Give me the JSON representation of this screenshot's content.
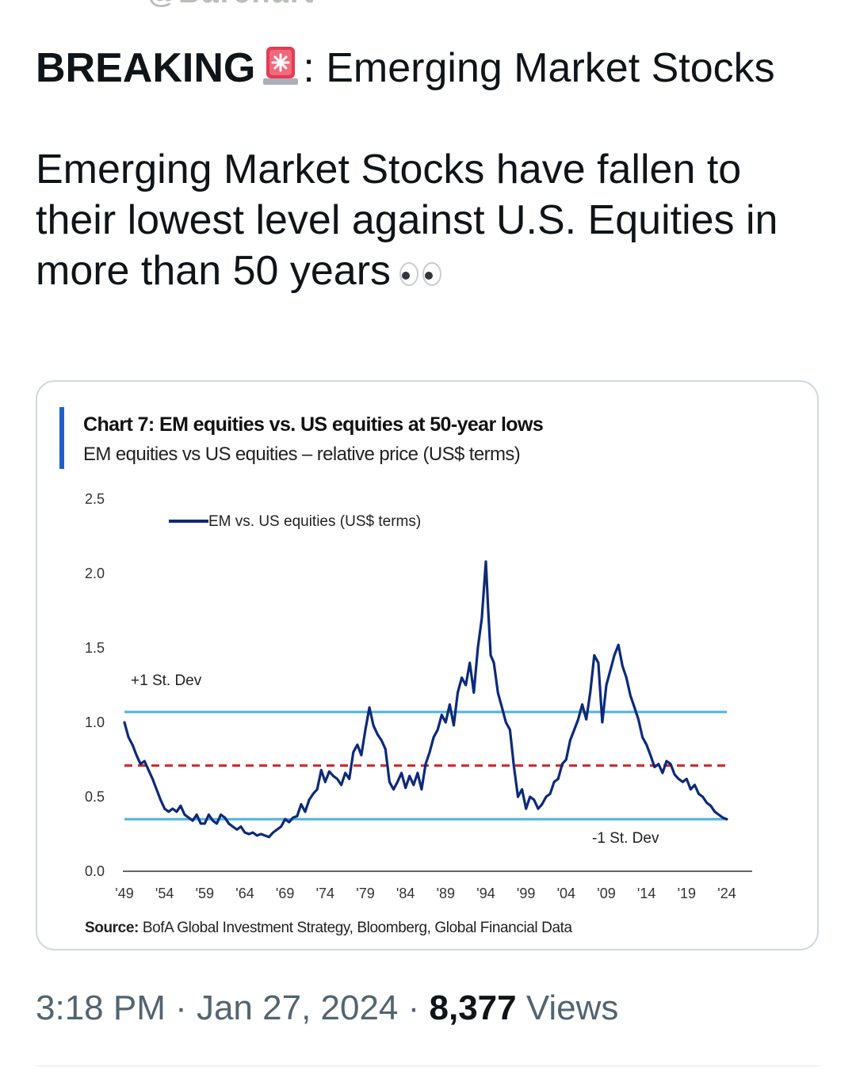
{
  "tweet": {
    "headline_bold": "BREAKING",
    "headline_rest": ": Emerging Market Stocks",
    "body": "Emerging Market Stocks have fallen to their lowest level against U.S. Equities in more than 50 years",
    "emoji_icons": [
      "rotating-light-icon",
      "eyes-icon"
    ],
    "timestamp": "3:18 PM · Jan 27, 2024 · ",
    "views_count": "8,377",
    "views_label": " Views"
  },
  "chart_card": {
    "title": "Chart 7: EM equities vs. US equities at 50-year lows",
    "subtitle": "EM equities vs US equities – relative price (US$ terms)",
    "source_label": "Source:",
    "source_text": " BofA Global Investment Strategy, Bloomberg, Global Financial Data",
    "accent_color": "#1f5fc9"
  },
  "chart_data": {
    "type": "line",
    "legend": "EM vs. US equities (US$ terms)",
    "annotations": [
      "+1 St. Dev",
      "-1 St. Dev"
    ],
    "ylim": [
      0.0,
      2.5
    ],
    "y_ticks": [
      "0.0",
      "0.5",
      "1.0",
      "1.5",
      "2.0",
      "2.5"
    ],
    "x_ticks": [
      "'49",
      "'54",
      "'59",
      "'64",
      "'69",
      "'74",
      "'79",
      "'84",
      "'89",
      "'94",
      "'99",
      "'04",
      "'09",
      "'14",
      "'19",
      "'24"
    ],
    "xlim": [
      1949,
      2025
    ],
    "reference_lines": [
      {
        "name": "+1 St. Dev",
        "value": 1.07,
        "style": "solid",
        "color": "#4fb3e0"
      },
      {
        "name": "mean",
        "value": 0.71,
        "style": "dashed",
        "color": "#d42a2a"
      },
      {
        "name": "-1 St. Dev",
        "value": 0.35,
        "style": "solid",
        "color": "#4fb3e0"
      }
    ],
    "line_color": "#0d2a7a",
    "series": [
      {
        "name": "EM vs. US equities (US$ terms)",
        "x": [
          1949.0,
          1949.5,
          1950.0,
          1950.5,
          1951.0,
          1951.5,
          1952.0,
          1952.5,
          1953.0,
          1953.5,
          1954.0,
          1954.5,
          1955.0,
          1955.5,
          1956.0,
          1956.5,
          1957.0,
          1957.5,
          1958.0,
          1958.5,
          1959.0,
          1959.5,
          1960.0,
          1960.5,
          1961.0,
          1961.5,
          1962.0,
          1962.5,
          1963.0,
          1963.5,
          1964.0,
          1964.5,
          1965.0,
          1965.5,
          1966.0,
          1966.5,
          1967.0,
          1967.5,
          1968.0,
          1968.5,
          1969.0,
          1969.5,
          1970.0,
          1970.5,
          1971.0,
          1971.5,
          1972.0,
          1972.5,
          1973.0,
          1973.5,
          1974.0,
          1974.5,
          1975.0,
          1975.5,
          1976.0,
          1976.5,
          1977.0,
          1977.5,
          1978.0,
          1978.5,
          1979.0,
          1979.5,
          1980.0,
          1980.5,
          1981.0,
          1981.5,
          1982.0,
          1982.5,
          1983.0,
          1983.5,
          1984.0,
          1984.5,
          1985.0,
          1985.5,
          1986.0,
          1986.5,
          1987.0,
          1987.5,
          1988.0,
          1988.5,
          1989.0,
          1989.5,
          1990.0,
          1990.5,
          1991.0,
          1991.5,
          1992.0,
          1992.5,
          1993.0,
          1993.5,
          1994.0,
          1994.3,
          1994.6,
          1995.0,
          1995.5,
          1996.0,
          1996.5,
          1997.0,
          1997.5,
          1998.0,
          1998.5,
          1999.0,
          1999.5,
          2000.0,
          2000.5,
          2001.0,
          2001.5,
          2002.0,
          2002.5,
          2003.0,
          2003.5,
          2004.0,
          2004.5,
          2005.0,
          2005.5,
          2006.0,
          2006.5,
          2007.0,
          2007.5,
          2008.0,
          2008.5,
          2009.0,
          2009.5,
          2010.0,
          2010.5,
          2011.0,
          2011.5,
          2012.0,
          2012.5,
          2013.0,
          2013.5,
          2014.0,
          2014.5,
          2015.0,
          2015.5,
          2016.0,
          2016.5,
          2017.0,
          2017.5,
          2018.0,
          2018.5,
          2019.0,
          2019.5,
          2020.0,
          2020.5,
          2021.0,
          2021.5,
          2022.0,
          2022.5,
          2023.0,
          2023.5,
          2024.0
        ],
        "values": [
          1.0,
          0.9,
          0.85,
          0.78,
          0.72,
          0.74,
          0.68,
          0.62,
          0.55,
          0.48,
          0.42,
          0.4,
          0.42,
          0.4,
          0.44,
          0.38,
          0.36,
          0.34,
          0.38,
          0.32,
          0.32,
          0.38,
          0.34,
          0.32,
          0.38,
          0.36,
          0.32,
          0.3,
          0.28,
          0.3,
          0.26,
          0.25,
          0.26,
          0.24,
          0.25,
          0.24,
          0.23,
          0.26,
          0.28,
          0.3,
          0.35,
          0.33,
          0.36,
          0.37,
          0.45,
          0.4,
          0.48,
          0.52,
          0.55,
          0.68,
          0.6,
          0.67,
          0.64,
          0.62,
          0.58,
          0.66,
          0.62,
          0.8,
          0.85,
          0.78,
          0.95,
          1.1,
          0.98,
          0.92,
          0.88,
          0.82,
          0.6,
          0.55,
          0.6,
          0.66,
          0.56,
          0.64,
          0.58,
          0.66,
          0.55,
          0.72,
          0.8,
          0.9,
          0.95,
          1.05,
          1.0,
          1.12,
          0.98,
          1.2,
          1.3,
          1.25,
          1.4,
          1.2,
          1.5,
          1.7,
          2.08,
          1.75,
          1.45,
          1.4,
          1.2,
          1.1,
          1.0,
          0.95,
          0.7,
          0.5,
          0.55,
          0.42,
          0.5,
          0.48,
          0.42,
          0.45,
          0.5,
          0.52,
          0.6,
          0.62,
          0.72,
          0.75,
          0.88,
          0.95,
          1.02,
          1.12,
          1.02,
          1.2,
          1.45,
          1.4,
          1.0,
          1.25,
          1.35,
          1.45,
          1.52,
          1.38,
          1.3,
          1.18,
          1.1,
          1.02,
          0.9,
          0.85,
          0.78,
          0.7,
          0.72,
          0.66,
          0.74,
          0.72,
          0.65,
          0.62,
          0.6,
          0.62,
          0.55,
          0.58,
          0.52,
          0.5,
          0.46,
          0.44,
          0.4,
          0.38,
          0.36,
          0.35
        ]
      }
    ]
  }
}
